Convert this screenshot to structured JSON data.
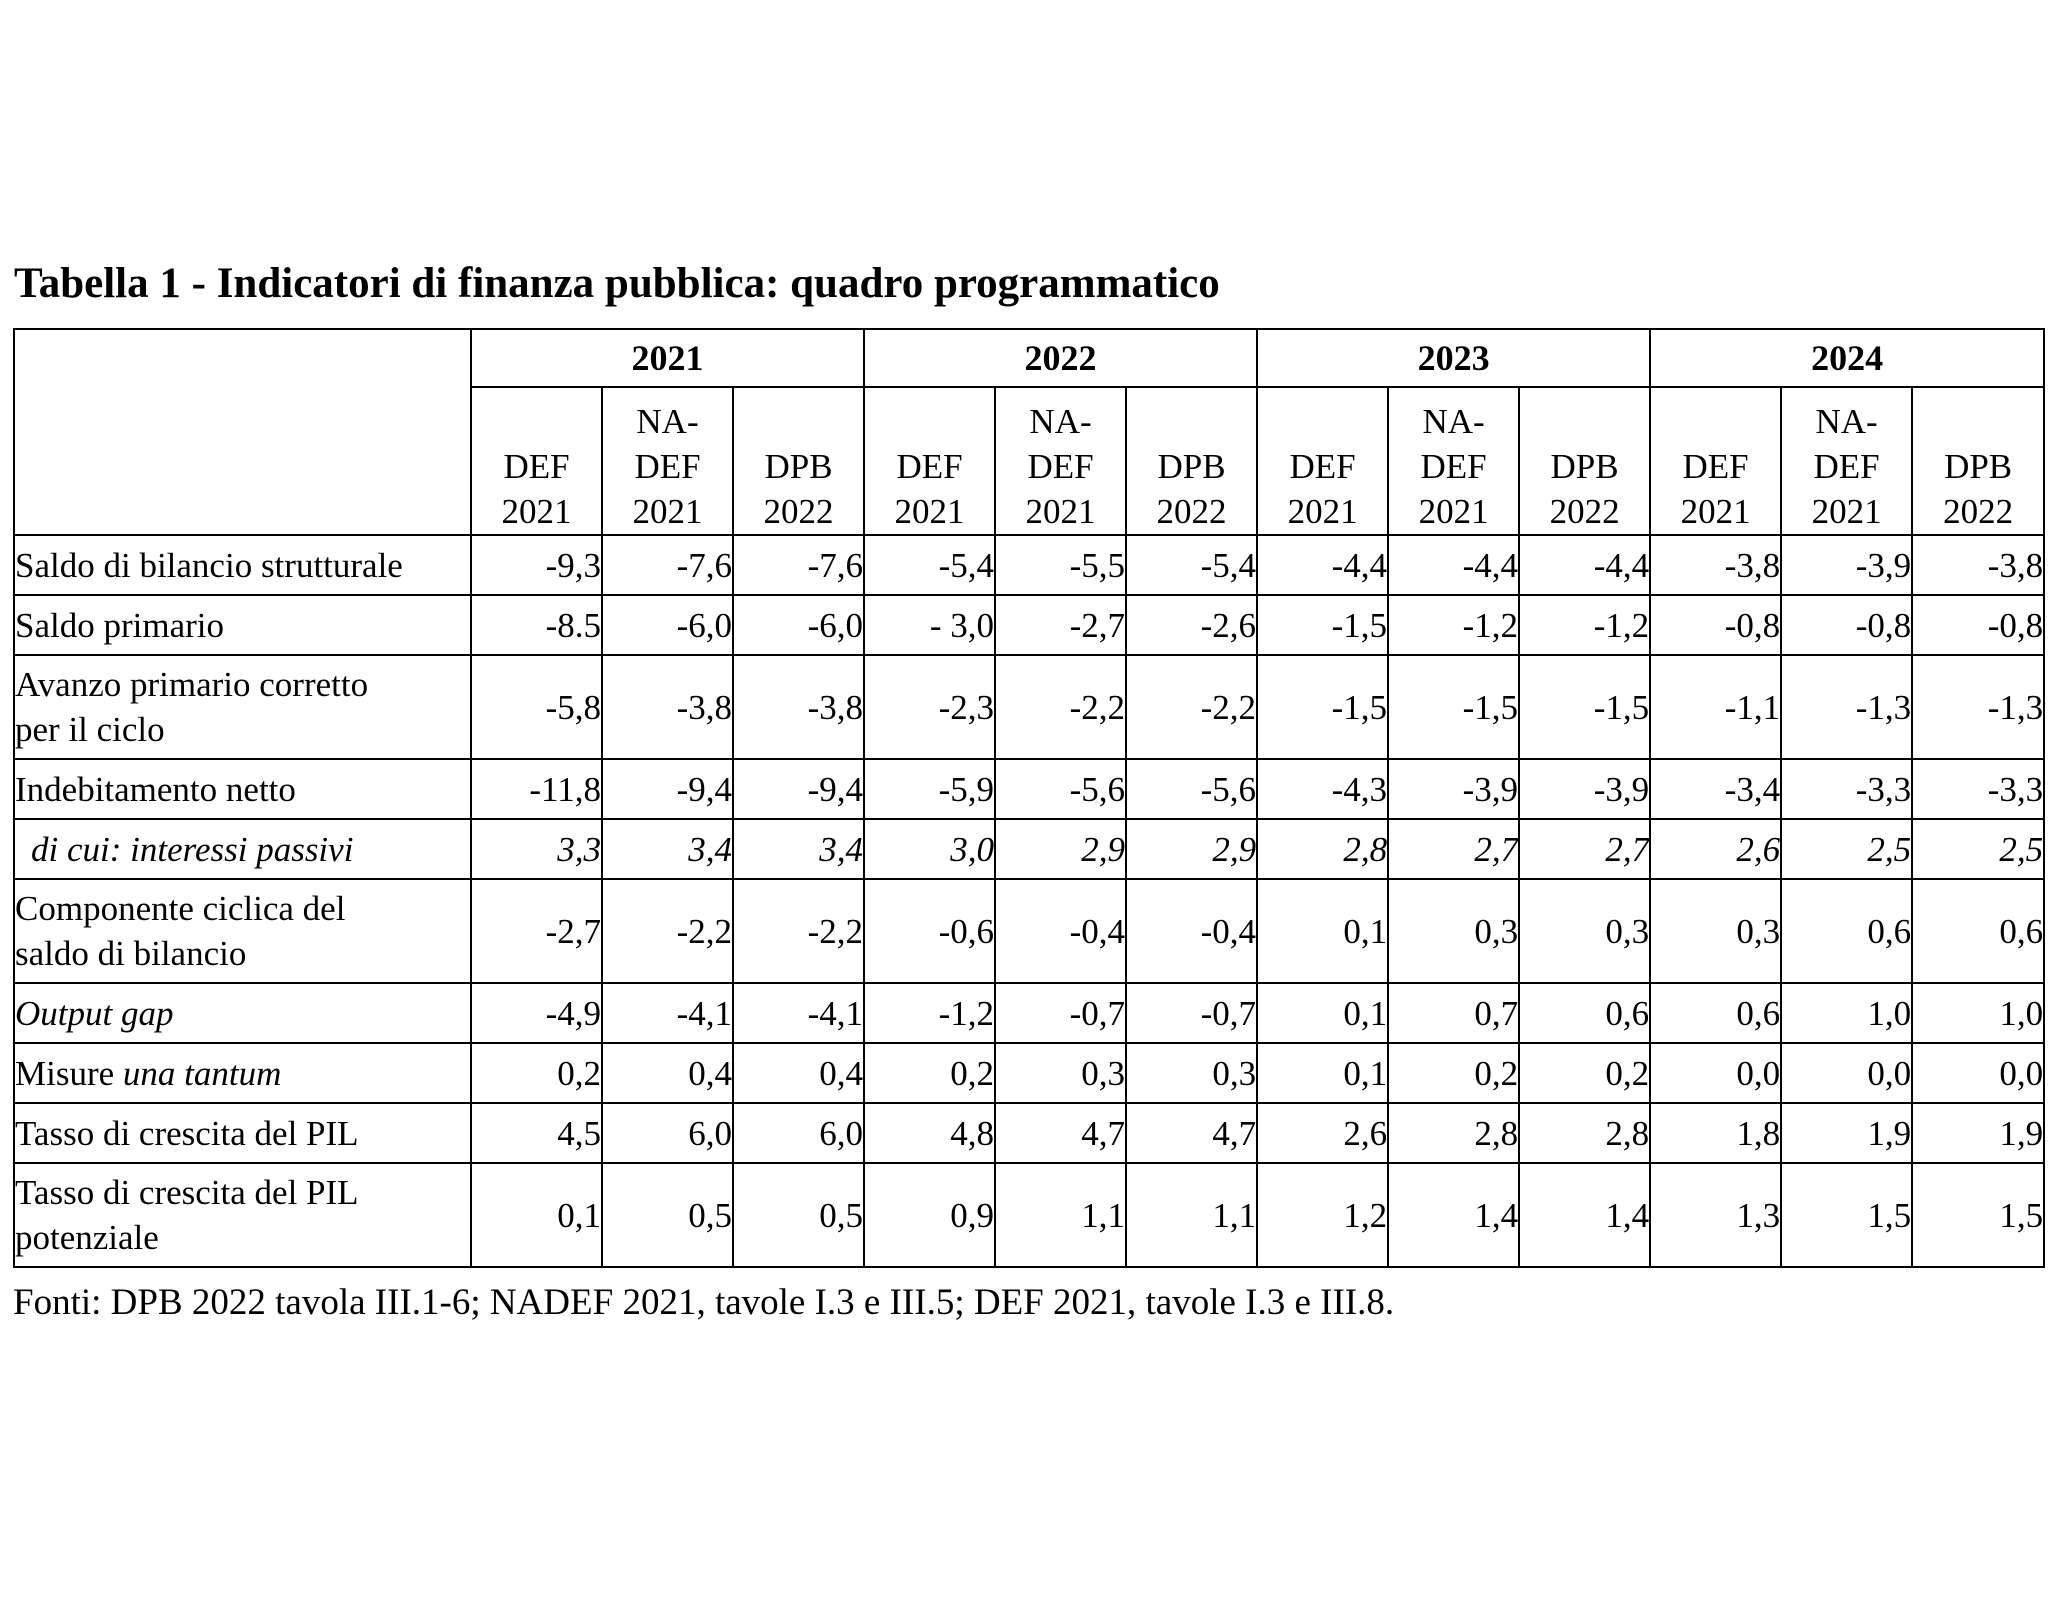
{
  "title": "Tabella 1 - Indicatori di finanza pubblica: quadro programmatico",
  "years": [
    "2021",
    "2022",
    "2023",
    "2024"
  ],
  "subheaders": [
    {
      "l1": "",
      "l2": "DEF",
      "l3": "2021"
    },
    {
      "l1": "NA-",
      "l2": "DEF",
      "l3": "2021"
    },
    {
      "l1": "",
      "l2": "DPB",
      "l3": "2022"
    }
  ],
  "rows": [
    {
      "label": "Saldo di bilancio strutturale",
      "values": [
        "-9,3",
        "-7,6",
        "-7,6",
        "-5,4",
        "-5,5",
        "-5,4",
        "-4,4",
        "-4,4",
        "-4,4",
        "-3,8",
        "-3,9",
        "-3,8"
      ]
    },
    {
      "label": "Saldo primario",
      "values": [
        "-8.5",
        "-6,0",
        "-6,0",
        "- 3,0",
        "-2,7",
        "-2,6",
        "-1,5",
        "-1,2",
        "-1,2",
        "-0,8",
        "-0,8",
        "-0,8"
      ]
    },
    {
      "label_l1": "Avanzo primario corretto",
      "label_l2": "per il ciclo",
      "values": [
        "-5,8",
        "-3,8",
        "-3,8",
        "-2,3",
        "-2,2",
        "-2,2",
        "-1,5",
        "-1,5",
        "-1,5",
        "-1,1",
        "-1,3",
        "-1,3"
      ]
    },
    {
      "label": "Indebitamento netto",
      "values": [
        "-11,8",
        "-9,4",
        "-9,4",
        "-5,9",
        "-5,6",
        "-5,6",
        "-4,3",
        "-3,9",
        "-3,9",
        "-3,4",
        "-3,3",
        "-3,3"
      ]
    },
    {
      "label": "di cui: interessi passivi",
      "values": [
        "3,3",
        "3,4",
        "3,4",
        "3,0",
        "2,9",
        "2,9",
        "2,8",
        "2,7",
        "2,7",
        "2,6",
        "2,5",
        "2,5"
      ]
    },
    {
      "label_l1": "Componente ciclica del",
      "label_l2": "saldo di bilancio",
      "values": [
        "-2,7",
        "-2,2",
        "-2,2",
        "-0,6",
        "-0,4",
        "-0,4",
        "0,1",
        "0,3",
        "0,3",
        "0,3",
        "0,6",
        "0,6"
      ]
    },
    {
      "label": "Output gap",
      "values": [
        "-4,9",
        "-4,1",
        "-4,1",
        "-1,2",
        "-0,7",
        "-0,7",
        "0,1",
        "0,7",
        "0,6",
        "0,6",
        "1,0",
        "1,0"
      ]
    },
    {
      "label_a": "Misure",
      "label_b": "una tantum",
      "values": [
        "0,2",
        "0,4",
        "0,4",
        "0,2",
        "0,3",
        "0,3",
        "0,1",
        "0,2",
        "0,2",
        "0,0",
        "0,0",
        "0,0"
      ]
    },
    {
      "label": "Tasso di crescita del PIL",
      "values": [
        "4,5",
        "6,0",
        "6,0",
        "4,8",
        "4,7",
        "4,7",
        "2,6",
        "2,8",
        "2,8",
        "1,8",
        "1,9",
        "1,9"
      ]
    },
    {
      "label_l1": "Tasso di crescita del PIL",
      "label_l2": "potenziale",
      "values": [
        "0,1",
        "0,5",
        "0,5",
        "0,9",
        "1,1",
        "1,1",
        "1,2",
        "1,4",
        "1,4",
        "1,3",
        "1,5",
        "1,5"
      ]
    }
  ],
  "footer": "Fonti: DPB 2022 tavola III.1-6; NADEF 2021, tavole I.3 e III.5; DEF 2021, tavole I.3 e III.8."
}
